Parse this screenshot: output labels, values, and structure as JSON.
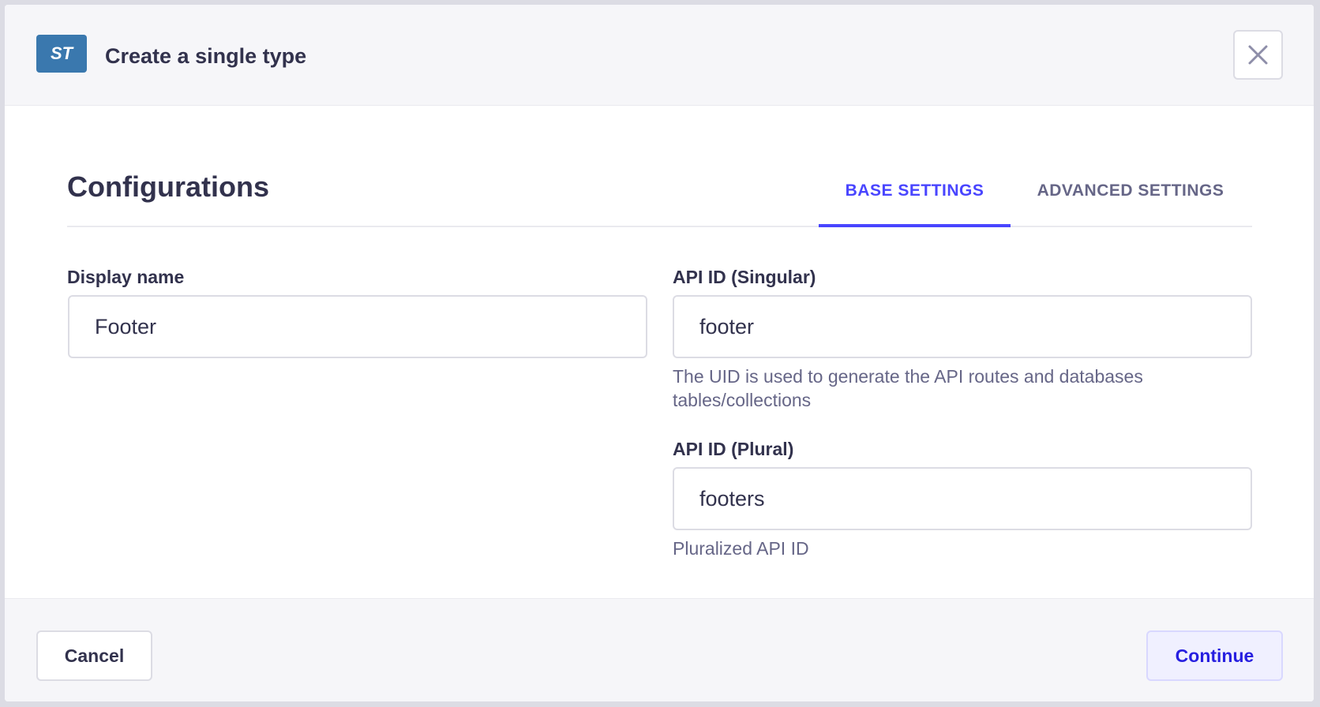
{
  "header": {
    "badge": "ST",
    "title": "Create a single type"
  },
  "section": {
    "title": "Configurations",
    "tabs": [
      "BASE SETTINGS",
      "ADVANCED SETTINGS"
    ]
  },
  "fields": [
    {
      "label": "Display name",
      "value": "Footer"
    },
    {
      "label": "API ID (Singular)",
      "value": "footer",
      "hint": "The UID is used to generate the API routes and databases tables/collections"
    },
    {
      "label": "API ID (Plural)",
      "value": "footers",
      "hint": "Pluralized API ID"
    }
  ],
  "footer": {
    "cancel": "Cancel",
    "continue": "Continue"
  }
}
